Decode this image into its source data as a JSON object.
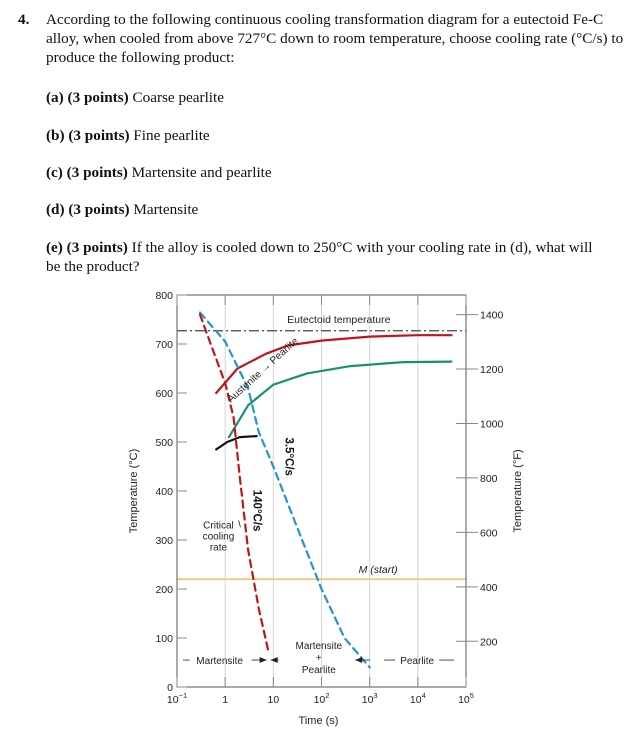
{
  "question": {
    "number": "4.",
    "stem": "According to the following continuous cooling transformation diagram for a eutectoid Fe-C alloy, when cooled from above 727°C down to room temperature, choose cooling rate (°C/s) to produce the following product:"
  },
  "parts": [
    {
      "label": "(a) (3 points)",
      "text": " Coarse pearlite"
    },
    {
      "label": "(b) (3 points)",
      "text": " Fine pearlite"
    },
    {
      "label": "(c) (3 points)",
      "text": " Martensite and pearlite"
    },
    {
      "label": "(d) (3 points)",
      "text": " Martensite"
    },
    {
      "label": "(e) (3 points)",
      "text": " If the alloy is cooled down to 250°C with your cooling rate in (d), what will be the product?"
    }
  ],
  "chart_data": {
    "type": "line",
    "xlabel": "Time (s)",
    "ylabel": "Temperature (°C)",
    "y2label": "Temperature (°F)",
    "xscale": "log",
    "xlim": [
      0.1,
      100000
    ],
    "ylim": [
      0,
      800
    ],
    "x_ticks": [
      {
        "value": 0.1,
        "base": "10",
        "exp": "−1"
      },
      {
        "value": 1,
        "base": "1",
        "exp": ""
      },
      {
        "value": 10,
        "base": "10",
        "exp": ""
      },
      {
        "value": 100,
        "base": "10",
        "exp": "2"
      },
      {
        "value": 1000,
        "base": "10",
        "exp": "3"
      },
      {
        "value": 10000,
        "base": "10",
        "exp": "4"
      },
      {
        "value": 100000,
        "base": "10",
        "exp": "5"
      }
    ],
    "y_ticks": [
      0,
      100,
      200,
      300,
      400,
      500,
      600,
      700,
      800
    ],
    "y2_ticks": [
      200,
      400,
      600,
      800,
      1000,
      1200,
      1400
    ],
    "annotations": {
      "eutectoid": "Eutectoid temperature",
      "austenite_pearlite": "Austenite → Pearlite",
      "critical": [
        "Critical",
        "cooling",
        "rate"
      ],
      "rate_140": "140°C/s",
      "rate_35": "3.5°C/s",
      "m_start": "M (start)",
      "martensite": "Martensite",
      "mix": [
        "Martensite",
        "+",
        "Pearlite"
      ],
      "pearlite": "Pearlite"
    },
    "series": [
      {
        "color": "#c0141c",
        "x": [
          0.65,
          1.8,
          7,
          20,
          100,
          1000,
          10000,
          50000
        ],
        "y": [
          600,
          650,
          680,
          697,
          707,
          715,
          718,
          718
        ]
      },
      {
        "color": "#1a9070",
        "x": [
          1.2,
          3,
          10,
          50,
          400,
          5000,
          50000
        ],
        "y": [
          510,
          575,
          617,
          640,
          655,
          663,
          664
        ]
      },
      {
        "color": "#111111",
        "x": [
          0.65,
          1.1,
          2,
          4.5
        ],
        "y": [
          485,
          500,
          510,
          512
        ]
      },
      {
        "color": "#2196cf",
        "dashed": true,
        "x": [
          0.3,
          1,
          3,
          5,
          10,
          30,
          100,
          300,
          1000
        ],
        "y": [
          764,
          705,
          610,
          520,
          450,
          330,
          200,
          100,
          40
        ]
      },
      {
        "color": "#c0141c",
        "dashed": true,
        "x": [
          0.3,
          0.5,
          1,
          1.5,
          2,
          3,
          5,
          8
        ],
        "y": [
          760,
          700,
          620,
          550,
          430,
          280,
          160,
          70
        ]
      }
    ],
    "reference_lines": [
      {
        "y": 727,
        "color": "#444444",
        "style": "dash-dot"
      },
      {
        "y": 220,
        "color": "#f3c26a",
        "style": "solid"
      }
    ]
  }
}
